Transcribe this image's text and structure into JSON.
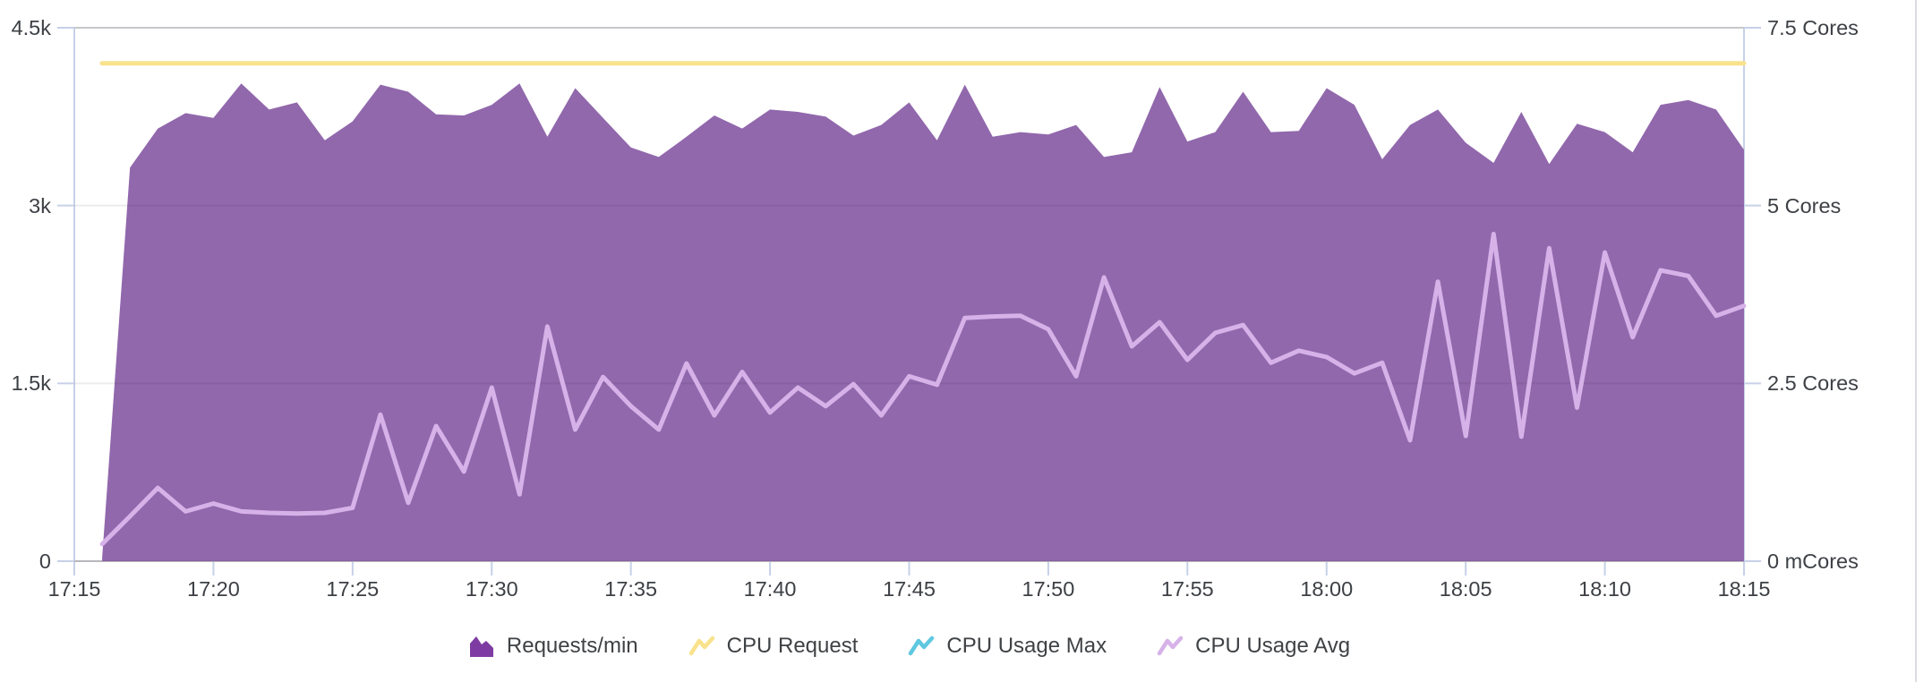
{
  "chart_data": {
    "type": "area",
    "title": "",
    "x_axis": {
      "labels": [
        "17:15",
        "17:20",
        "17:25",
        "17:30",
        "17:35",
        "17:40",
        "17:45",
        "17:50",
        "17:55",
        "18:00",
        "18:05",
        "18:10",
        "18:15"
      ],
      "start": "17:15",
      "end": "18:15",
      "tick_interval_minutes": 5,
      "total_minutes": 60
    },
    "left_axis": {
      "labels": [
        "0",
        "1.5k",
        "3k",
        "4.5k"
      ],
      "tick_values": [
        0,
        1500,
        3000,
        4500
      ],
      "max": 4500,
      "applies_to": "Requests/min"
    },
    "right_axis": {
      "labels": [
        "0 mCores",
        "2.5 Cores",
        "5 Cores",
        "7.5 Cores"
      ],
      "tick_values": [
        0,
        2.5,
        5,
        7.5
      ],
      "max": 7.5,
      "applies_to": "CPU"
    },
    "grid": "horizontal",
    "legend_position": "bottom-center",
    "series": [
      {
        "name": "Requests/min",
        "type": "area",
        "axis": "left",
        "color": "#9168ac",
        "legend_color": "#7e3ca3",
        "start_time": "17:16",
        "step_minutes": 1,
        "values": [
          30,
          3320,
          3650,
          3780,
          3740,
          4030,
          3810,
          3870,
          3550,
          3710,
          4020,
          3960,
          3770,
          3760,
          3850,
          4030,
          3580,
          3990,
          3740,
          3490,
          3410,
          3580,
          3760,
          3650,
          3810,
          3790,
          3750,
          3590,
          3680,
          3870,
          3550,
          4020,
          3580,
          3620,
          3600,
          3680,
          3410,
          3450,
          4000,
          3540,
          3620,
          3960,
          3620,
          3630,
          3990,
          3850,
          3390,
          3680,
          3810,
          3530,
          3360,
          3790,
          3350,
          3690,
          3620,
          3450,
          3850,
          3890,
          3810,
          3470
        ]
      },
      {
        "name": "CPU Request",
        "type": "line",
        "axis": "right",
        "color": "#f9e28b",
        "start_time": "17:16",
        "constant": 7.0,
        "unit": "Cores"
      },
      {
        "name": "CPU Usage Max",
        "type": "line",
        "axis": "right",
        "color": "#5fc8e0",
        "values": [],
        "note": "legend entry only; no visible line in chart"
      },
      {
        "name": "CPU Usage Avg",
        "type": "line",
        "axis": "right",
        "color": "#d6b2e9",
        "start_time": "17:16",
        "step_minutes": 1,
        "unit": "Cores",
        "values": [
          0.24,
          0.63,
          1.03,
          0.7,
          0.81,
          0.7,
          0.68,
          0.67,
          0.68,
          0.75,
          2.06,
          0.82,
          1.9,
          1.26,
          2.44,
          0.94,
          3.3,
          1.85,
          2.59,
          2.18,
          1.85,
          2.78,
          2.05,
          2.66,
          2.09,
          2.44,
          2.18,
          2.49,
          2.05,
          2.6,
          2.48,
          3.42,
          3.44,
          3.45,
          3.26,
          2.6,
          3.99,
          3.02,
          3.36,
          2.83,
          3.21,
          3.32,
          2.79,
          2.96,
          2.87,
          2.64,
          2.79,
          1.7,
          3.93,
          1.76,
          4.6,
          1.75,
          4.4,
          2.16,
          4.34,
          3.15,
          4.09,
          4.01,
          3.45,
          3.59
        ]
      }
    ],
    "colors": {
      "background": "#ffffff",
      "axis_line": "#c6d1e8",
      "top_gridline": "#c6c7ca",
      "baseline": "#c9cacc",
      "tick_text": "#3d4045",
      "panel_border": "#dadce0"
    }
  }
}
